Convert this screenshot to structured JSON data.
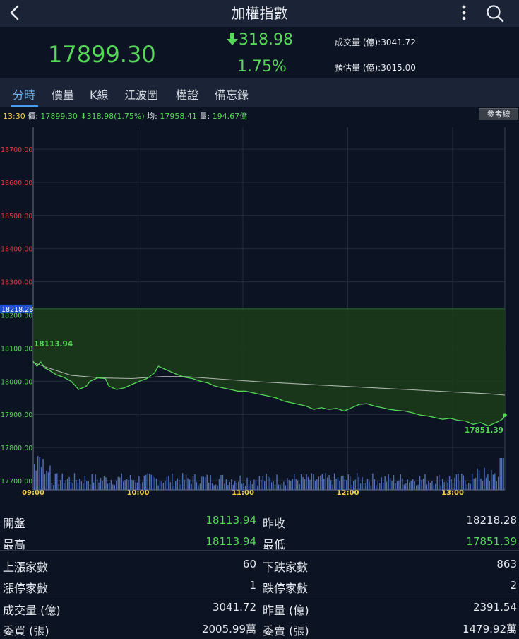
{
  "header": {
    "title": "加權指數"
  },
  "quote": {
    "price": "17899.30",
    "change": "318.98",
    "change_pct": "1.75%",
    "volume_label": "成交量 (億):3041.72",
    "est_volume_label": "預估量 (億):3015.00"
  },
  "tabs": [
    "分時",
    "價量",
    "K線",
    "江波圖",
    "權證",
    "備忘錄"
  ],
  "info": {
    "time": "13:30",
    "price_label": "價:",
    "price": "17899.30",
    "change": "318.98(1.75%)",
    "avg_label": "均:",
    "avg": "17958.41",
    "vol_label": "量:",
    "vol": "194.67億",
    "ref_button": "參考線"
  },
  "chart_data": {
    "type": "line",
    "y_ticks": [
      "18700.00",
      "18600.00",
      "18500.00",
      "18400.00",
      "18300.00",
      "18200.00",
      "18100.00",
      "18000.00",
      "17900.00",
      "17800.00",
      "17700.00"
    ],
    "ylim": [
      17690,
      18740
    ],
    "x_ticks": [
      "09:00",
      "10:00",
      "11:00",
      "12:00",
      "13:00"
    ],
    "prev_close": 18218.28,
    "prev_close_label": "18218.28",
    "high_label": "18113.94",
    "low_label": "17851.39",
    "colors": {
      "price_line": "#57d75a",
      "avg_line": "#c8c8c8",
      "fill": "#1b3b1a",
      "up": "#e23b3b",
      "down": "#57d75a",
      "volume": "#4f6fb8"
    },
    "series": [
      {
        "values": [
          [
            0,
            18060
          ],
          [
            5,
            18045
          ],
          [
            10,
            18058
          ],
          [
            15,
            18040
          ],
          [
            20,
            18035
          ],
          [
            30,
            18020
          ],
          [
            40,
            18012
          ],
          [
            50,
            18000
          ],
          [
            60,
            17975
          ],
          [
            70,
            17985
          ],
          [
            75,
            18000
          ],
          [
            85,
            18010
          ],
          [
            95,
            18008
          ],
          [
            100,
            17985
          ],
          [
            110,
            17975
          ],
          [
            120,
            17980
          ],
          [
            130,
            17990
          ],
          [
            140,
            18000
          ],
          [
            150,
            18008
          ],
          [
            160,
            18025
          ],
          [
            165,
            18045
          ],
          [
            170,
            18040
          ],
          [
            175,
            18035
          ],
          [
            180,
            18030
          ],
          [
            190,
            18020
          ],
          [
            200,
            18012
          ],
          [
            210,
            18008
          ],
          [
            220,
            18000
          ],
          [
            230,
            17995
          ],
          [
            240,
            17985
          ],
          [
            250,
            17980
          ],
          [
            260,
            17975
          ],
          [
            270,
            17970
          ],
          [
            280,
            17970
          ],
          [
            290,
            17965
          ],
          [
            300,
            17960
          ],
          [
            310,
            17955
          ],
          [
            320,
            17950
          ],
          [
            330,
            17940
          ],
          [
            340,
            17935
          ],
          [
            350,
            17930
          ],
          [
            360,
            17925
          ],
          [
            370,
            17915
          ],
          [
            380,
            17920
          ],
          [
            390,
            17915
          ],
          [
            400,
            17918
          ],
          [
            410,
            17910
          ],
          [
            420,
            17920
          ],
          [
            430,
            17930
          ],
          [
            440,
            17932
          ],
          [
            450,
            17925
          ],
          [
            460,
            17920
          ],
          [
            470,
            17915
          ],
          [
            480,
            17912
          ],
          [
            490,
            17910
          ],
          [
            500,
            17905
          ],
          [
            510,
            17898
          ],
          [
            520,
            17895
          ],
          [
            530,
            17890
          ],
          [
            540,
            17885
          ],
          [
            550,
            17888
          ],
          [
            560,
            17882
          ],
          [
            570,
            17880
          ],
          [
            580,
            17870
          ],
          [
            590,
            17875
          ],
          [
            600,
            17865
          ],
          [
            605,
            17870
          ],
          [
            610,
            17875
          ],
          [
            615,
            17880
          ],
          [
            620,
            17888
          ],
          [
            622,
            17898
          ]
        ]
      },
      {
        "values": [
          [
            0,
            18056
          ],
          [
            20,
            18040
          ],
          [
            50,
            18018
          ],
          [
            90,
            18010
          ],
          [
            130,
            18008
          ],
          [
            170,
            18014
          ],
          [
            200,
            18014
          ],
          [
            250,
            18006
          ],
          [
            300,
            17998
          ],
          [
            350,
            17992
          ],
          [
            400,
            17986
          ],
          [
            450,
            17980
          ],
          [
            500,
            17974
          ],
          [
            550,
            17968
          ],
          [
            600,
            17962
          ],
          [
            622,
            17958
          ]
        ]
      }
    ]
  },
  "table": {
    "rows": [
      {
        "l": "開盤",
        "lv": "18113.94",
        "lc": "green",
        "r": "昨收",
        "rv": "18218.28",
        "rc": "white"
      },
      {
        "l": "最高",
        "lv": "18113.94",
        "lc": "green",
        "r": "最低",
        "rv": "17851.39",
        "rc": "green"
      },
      {
        "l": "上漲家數",
        "lv": "60",
        "lc": "white",
        "r": "下跌家數",
        "rv": "863",
        "rc": "white"
      },
      {
        "l": "漲停家數",
        "lv": "1",
        "lc": "white",
        "r": "跌停家數",
        "rv": "2",
        "rc": "white"
      },
      {
        "l": "成交量 (億)",
        "lv": "3041.72",
        "lc": "white",
        "r": "昨量 (億)",
        "rv": "2391.54",
        "rc": "white"
      },
      {
        "l": "委買 (張)",
        "lv": "2005.99萬",
        "lc": "white",
        "r": "委賣 (張)",
        "rv": "1479.92萬",
        "rc": "white"
      }
    ]
  }
}
